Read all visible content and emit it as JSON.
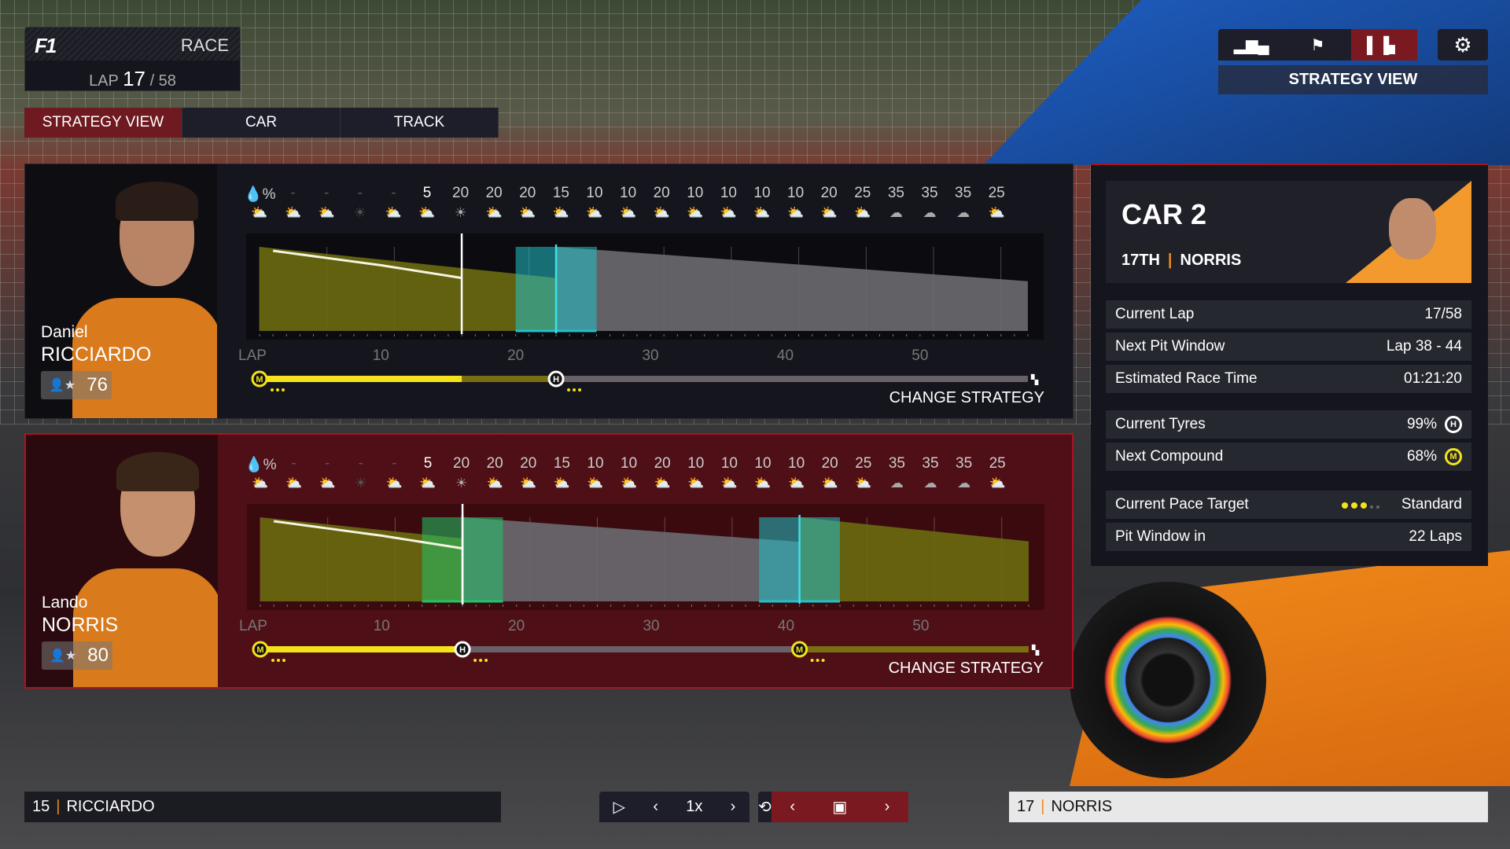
{
  "header": {
    "logo": "F1",
    "session": "RACE",
    "lap_label": "LAP",
    "current_lap": "17",
    "total_laps": "/ 58"
  },
  "tabs": [
    {
      "label": "STRATEGY VIEW",
      "active": true
    },
    {
      "label": "CAR",
      "active": false
    },
    {
      "label": "TRACK",
      "active": false
    }
  ],
  "top_nav": {
    "icons": [
      "bar-chart-icon",
      "flag-icon",
      "strategy-icon"
    ],
    "active": 2,
    "settings_icon": "gear-icon",
    "view_label": "STRATEGY VIEW"
  },
  "weather": {
    "rain_icon": "rain-percent-icon",
    "rain": [
      "-",
      "-",
      "-",
      "-",
      "-",
      "5",
      "20",
      "20",
      "20",
      "15",
      "10",
      "10",
      "20",
      "10",
      "10",
      "10",
      "10",
      "20",
      "25",
      "35",
      "35",
      "35",
      "25"
    ],
    "icons": [
      "partly",
      "partly",
      "partly",
      "sun",
      "partly",
      "partly",
      "sun",
      "partly",
      "partly",
      "partly",
      "partly",
      "partly",
      "partly",
      "partly",
      "partly",
      "partly",
      "partly",
      "partly",
      "partly",
      "cloud",
      "cloud",
      "cloud",
      "partly"
    ],
    "now_index": 5
  },
  "lap_axis": {
    "label": "LAP",
    "ticks": [
      "10",
      "20",
      "30",
      "40",
      "50"
    ]
  },
  "colors": {
    "medium": "#f4e31a",
    "hard": "#ffffff",
    "accent": "#b0101e",
    "team": "#f08a1a"
  },
  "drivers": [
    {
      "first": "Daniel",
      "last": "RICCIARDO",
      "rating": "76",
      "change_label": "CHANGE STRATEGY",
      "current_lap": 16,
      "stints": [
        {
          "compound": "M",
          "start": 1,
          "end": 23
        },
        {
          "compound": "H",
          "start": 23,
          "end": 58
        }
      ],
      "pit_windows": [
        {
          "start": 20,
          "end": 26,
          "color": "#22c1c8"
        }
      ]
    },
    {
      "first": "Lando",
      "last": "NORRIS",
      "rating": "80",
      "change_label": "CHANGE STRATEGY",
      "current_lap": 16,
      "stints": [
        {
          "compound": "M",
          "start": 1,
          "end": 16
        },
        {
          "compound": "H",
          "start": 16,
          "end": 41
        },
        {
          "compound": "M",
          "start": 41,
          "end": 58
        }
      ],
      "pit_windows": [
        {
          "start": 13,
          "end": 19,
          "color": "#22c46a"
        },
        {
          "start": 38,
          "end": 44,
          "color": "#22c1c8"
        }
      ]
    }
  ],
  "car_panel": {
    "title": "CAR 2",
    "position": "17TH",
    "driver": "NORRIS",
    "rows": [
      {
        "label": "Current Lap",
        "value": "17/58"
      },
      {
        "label": "Next Pit Window",
        "value": "Lap 38 - 44"
      },
      {
        "label": "Estimated Race Time",
        "value": "01:21:20"
      }
    ],
    "tyres": [
      {
        "label": "Current Tyres",
        "value": "99%",
        "compound": "H"
      },
      {
        "label": "Next Compound",
        "value": "68%",
        "compound": "M"
      }
    ],
    "pace": {
      "label": "Current Pace Target",
      "value": "Standard",
      "level": 3,
      "max": 5
    },
    "pit_in": {
      "label": "Pit Window in",
      "value": "22 Laps"
    }
  },
  "bottom": {
    "left": {
      "number": "15",
      "name": "RICCIARDO"
    },
    "right": {
      "number": "17",
      "name": "NORRIS"
    },
    "speed": "1x"
  }
}
